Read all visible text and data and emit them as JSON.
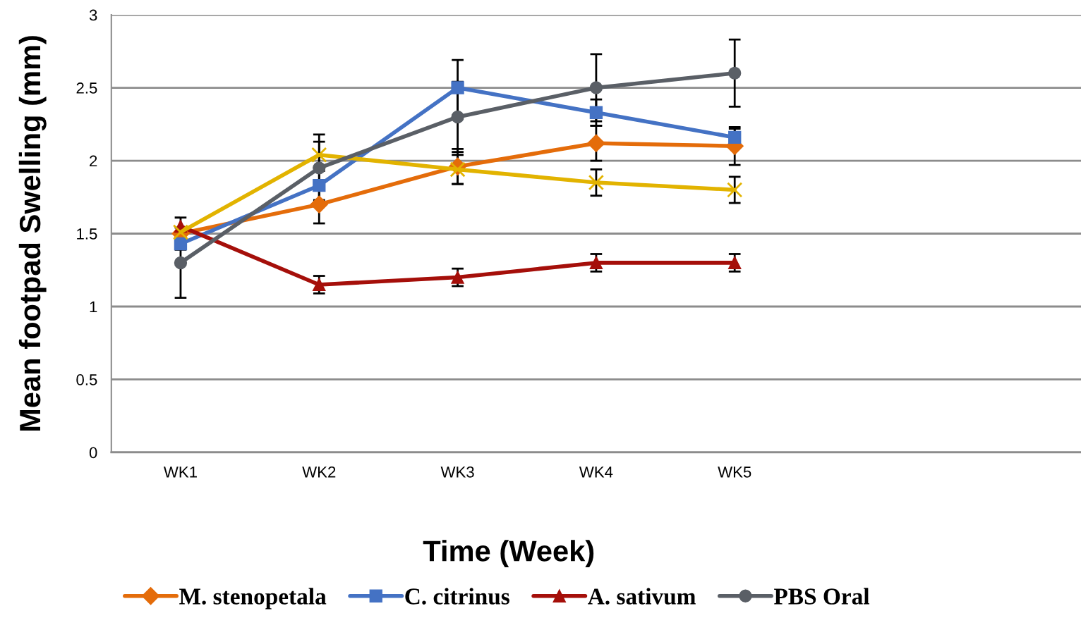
{
  "chart_data": {
    "type": "line",
    "xlabel": "Time (Week)",
    "ylabel": "Mean footpad Swelling (mm)",
    "categories": [
      "WK1",
      "WK2",
      "WK3",
      "WK4",
      "WK5",
      null,
      null
    ],
    "series": [
      {
        "name": "M. stenopetala",
        "color": "#e46c0a",
        "marker": "diamond",
        "values": [
          1.5,
          1.7,
          1.96,
          2.12,
          2.1,
          null,
          null
        ],
        "errors": [
          null,
          0.13,
          0.12,
          0.12,
          0.13,
          null,
          null
        ]
      },
      {
        "name": "C. citrinus",
        "color": "#4472c4",
        "marker": "square",
        "values": [
          1.43,
          1.83,
          2.5,
          2.33,
          2.16,
          null,
          null
        ],
        "errors": [
          0.04,
          0.1,
          0.19,
          0.09,
          0.06,
          null,
          null
        ]
      },
      {
        "name": "A. sativum",
        "color": "#a50f0a",
        "marker": "triangle",
        "values": [
          1.55,
          1.15,
          1.2,
          1.3,
          1.3,
          null,
          null
        ],
        "errors": [
          0.06,
          0.06,
          0.06,
          0.06,
          0.06,
          null,
          null
        ]
      },
      {
        "color": "#e2b300",
        "marker": "cross",
        "values": [
          1.51,
          2.04,
          1.94,
          1.85,
          1.8,
          null,
          null
        ],
        "errors": [
          null,
          0.09,
          0.1,
          0.09,
          0.09,
          null,
          null
        ]
      },
      {
        "name": "PBS Oral",
        "color": "#5a5f66",
        "marker": "circle",
        "values": [
          1.3,
          1.95,
          2.3,
          2.5,
          2.6,
          null,
          null
        ],
        "errors": [
          0.24,
          0.23,
          0.24,
          0.23,
          0.23,
          null,
          null
        ]
      }
    ],
    "ylim": [
      0,
      3
    ],
    "yticks": [
      0,
      0.5,
      1,
      1.5,
      2,
      2.5,
      3
    ],
    "grid": "y",
    "legend": "bottom"
  }
}
